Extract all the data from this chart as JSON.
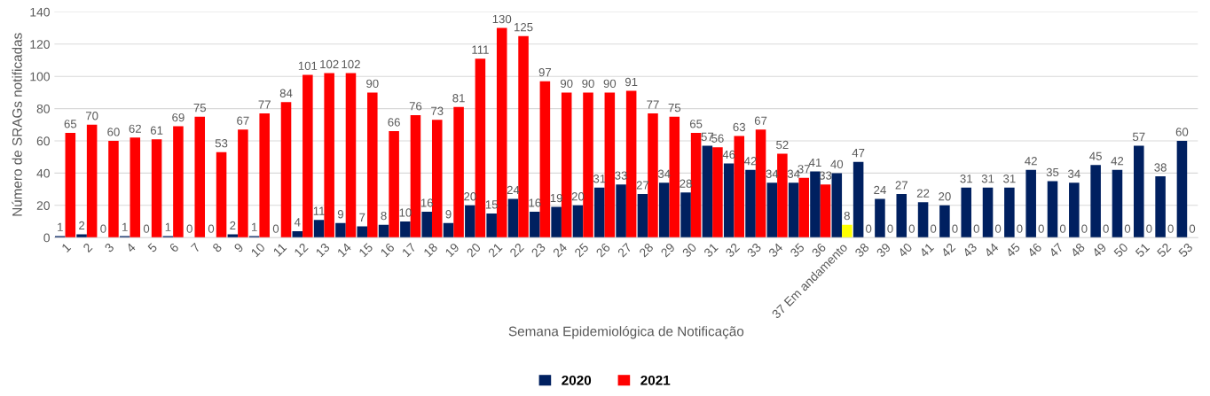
{
  "chart_data": {
    "type": "bar",
    "categories": [
      "1",
      "2",
      "3",
      "4",
      "5",
      "6",
      "7",
      "8",
      "9",
      "10",
      "11",
      "12",
      "13",
      "14",
      "15",
      "16",
      "17",
      "18",
      "19",
      "20",
      "21",
      "22",
      "23",
      "24",
      "25",
      "26",
      "27",
      "28",
      "29",
      "30",
      "31",
      "32",
      "33",
      "34",
      "35",
      "36",
      "37 Em andamento",
      "38",
      "39",
      "40",
      "41",
      "42",
      "43",
      "44",
      "45",
      "46",
      "47",
      "48",
      "49",
      "50",
      "51",
      "52",
      "53"
    ],
    "series": [
      {
        "name": "2020",
        "color": "#002060",
        "values": [
          1,
          2,
          0,
          1,
          0,
          1,
          0,
          0,
          2,
          1,
          0,
          4,
          11,
          9,
          7,
          8,
          10,
          16,
          9,
          20,
          15,
          24,
          16,
          19,
          20,
          31,
          33,
          27,
          34,
          28,
          57,
          46,
          42,
          34,
          34,
          41,
          40,
          47,
          24,
          27,
          22,
          20,
          31,
          31,
          31,
          42,
          35,
          34,
          45,
          42,
          57,
          38,
          60
        ]
      },
      {
        "name": "2021",
        "color": "#ff0000",
        "colors": [
          "#ff0000",
          "#ff0000",
          "#ff0000",
          "#ff0000",
          "#ff0000",
          "#ff0000",
          "#ff0000",
          "#ff0000",
          "#ff0000",
          "#ff0000",
          "#ff0000",
          "#ff0000",
          "#ff0000",
          "#ff0000",
          "#ff0000",
          "#ff0000",
          "#ff0000",
          "#ff0000",
          "#ff0000",
          "#ff0000",
          "#ff0000",
          "#ff0000",
          "#ff0000",
          "#ff0000",
          "#ff0000",
          "#ff0000",
          "#ff0000",
          "#ff0000",
          "#ff0000",
          "#ff0000",
          "#ff0000",
          "#ff0000",
          "#ff0000",
          "#ff0000",
          "#ff0000",
          "#ff0000",
          "#ffff00",
          "#ff0000",
          "#ff0000",
          "#ff0000",
          "#ff0000",
          "#ff0000",
          "#ff0000",
          "#ff0000",
          "#ff0000",
          "#ff0000",
          "#ff0000",
          "#ff0000",
          "#ff0000",
          "#ff0000",
          "#ff0000",
          "#ff0000",
          "#ff0000"
        ],
        "values": [
          65,
          70,
          60,
          62,
          61,
          69,
          75,
          53,
          67,
          77,
          84,
          101,
          102,
          102,
          90,
          66,
          76,
          73,
          81,
          111,
          130,
          125,
          97,
          90,
          90,
          90,
          91,
          77,
          75,
          65,
          56,
          63,
          67,
          52,
          37,
          33,
          8,
          0,
          0,
          0,
          0,
          0,
          0,
          0,
          0,
          0,
          0,
          0,
          0,
          0,
          0,
          0,
          0
        ]
      }
    ],
    "xlabel": "Semana Epidemiológica de Notificação",
    "ylabel": "Número de SRAGs notificadas",
    "ylim": [
      0,
      140
    ],
    "yticks": [
      0,
      20,
      40,
      60,
      80,
      100,
      120,
      140
    ],
    "grid": "y",
    "legend": "bottom",
    "data_labels": true
  }
}
